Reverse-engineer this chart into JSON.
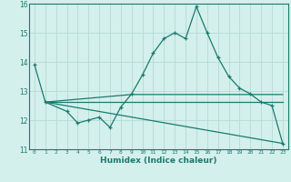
{
  "xlabel": "Humidex (Indice chaleur)",
  "bg_color": "#d4f0ec",
  "grid_color": "#b8ddd8",
  "line_color": "#1a7a6e",
  "xlim": [
    -0.5,
    23.5
  ],
  "ylim": [
    11,
    16
  ],
  "yticks": [
    11,
    12,
    13,
    14,
    15,
    16
  ],
  "xticks": [
    0,
    1,
    2,
    3,
    4,
    5,
    6,
    7,
    8,
    9,
    10,
    11,
    12,
    13,
    14,
    15,
    16,
    17,
    18,
    19,
    20,
    21,
    22,
    23
  ],
  "line1_x": [
    0,
    1,
    3,
    4,
    5,
    6,
    7,
    8,
    9,
    10,
    11,
    12,
    13,
    14,
    15,
    16,
    17,
    18,
    19,
    20,
    21,
    22,
    23
  ],
  "line1_y": [
    13.9,
    12.62,
    12.3,
    11.9,
    12.0,
    12.1,
    11.75,
    12.45,
    12.9,
    13.55,
    14.3,
    14.8,
    15.0,
    14.8,
    15.9,
    15.0,
    14.15,
    13.5,
    13.1,
    12.9,
    12.62,
    12.5,
    11.2
  ],
  "line2_x": [
    1,
    23
  ],
  "line2_y": [
    12.62,
    12.62
  ],
  "line3_x": [
    1,
    23
  ],
  "line3_y": [
    12.62,
    11.2
  ],
  "line4_x": [
    1,
    9,
    23
  ],
  "line4_y": [
    12.62,
    12.88,
    12.88
  ]
}
